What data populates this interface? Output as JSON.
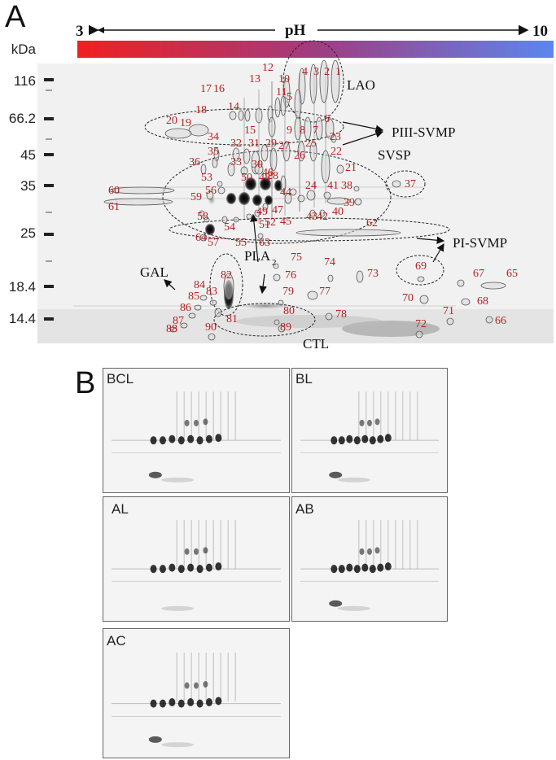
{
  "panel_a": {
    "letter": "A",
    "ph_left": "3",
    "ph_center": "pH",
    "ph_right": "10",
    "kda_label": "kDa",
    "gradient_colors": [
      "#f02020",
      "#a03c80",
      "#5c86ee"
    ],
    "spot_label_color": "#b52020",
    "markers": [
      "116",
      "66.2",
      "45",
      "35",
      "25",
      "18.4",
      "14.4"
    ],
    "groups": [
      "LAO",
      "PIII-SVMP",
      "SVSP",
      "PI-SVMP",
      "GAL",
      "PLA",
      "2",
      "CTL"
    ],
    "spot_labels": [
      "1",
      "2",
      "3",
      "4",
      "5",
      "6",
      "7",
      "8",
      "9",
      "10",
      "11",
      "12",
      "13",
      "14",
      "15",
      "16",
      "17",
      "18",
      "19",
      "20",
      "21",
      "22",
      "23",
      "24",
      "25",
      "26",
      "27",
      "28",
      "29",
      "30",
      "31",
      "32",
      "33",
      "34",
      "35",
      "36",
      "37",
      "38",
      "39",
      "40",
      "41",
      "42",
      "43",
      "44",
      "45",
      "46",
      "47",
      "48",
      "49",
      "50",
      "51",
      "52",
      "53",
      "54",
      "55",
      "56",
      "57",
      "58",
      "59",
      "60",
      "61",
      "62",
      "63",
      "64",
      "65",
      "66",
      "67",
      "68",
      "69",
      "70",
      "71",
      "72",
      "73",
      "74",
      "75",
      "76",
      "77",
      "78",
      "79",
      "80",
      "81",
      "82",
      "83",
      "84",
      "85",
      "86",
      "87",
      "88",
      "89",
      "90"
    ]
  },
  "panel_b": {
    "letter": "B",
    "gels": [
      "BCL",
      "BL",
      "AL",
      "AB",
      "AC"
    ]
  }
}
